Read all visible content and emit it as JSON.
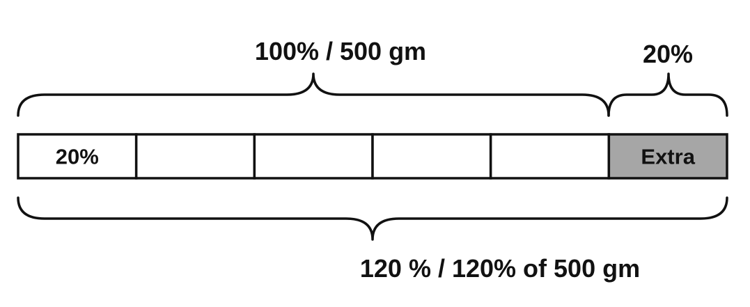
{
  "top_brace": {
    "label": "100% / 500 gm"
  },
  "extra_brace": {
    "label": "20%"
  },
  "bottom_brace": {
    "label": "120 % / 120% of 500 gm"
  },
  "bar": {
    "segments": [
      {
        "label": "20%",
        "shaded": false
      },
      {
        "label": "",
        "shaded": false
      },
      {
        "label": "",
        "shaded": false
      },
      {
        "label": "",
        "shaded": false
      },
      {
        "label": "",
        "shaded": false
      },
      {
        "label": "Extra",
        "shaded": true
      }
    ]
  },
  "colors": {
    "plain_fill": "#ffffff",
    "shaded_fill": "#a6a6a6",
    "stroke": "#111111"
  }
}
